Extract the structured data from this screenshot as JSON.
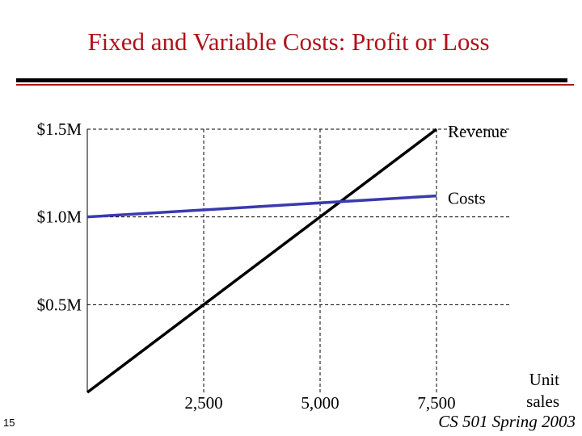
{
  "slide": {
    "title": "Fixed and Variable Costs: Profit or Loss",
    "number": "15",
    "footer": "CS 501 Spring 2003",
    "title_color": "#b0121b"
  },
  "chart_data": {
    "type": "line",
    "title": "",
    "xlabel": "Unit sales",
    "ylabel": "",
    "x_ticks": [
      {
        "value": 2500,
        "label": "2,500"
      },
      {
        "value": 5000,
        "label": "5,000"
      },
      {
        "value": 7500,
        "label": "7,500"
      }
    ],
    "y_ticks": [
      {
        "value": 0.5,
        "label": "$0.5M"
      },
      {
        "value": 1.0,
        "label": "$1.0M"
      },
      {
        "value": 1.5,
        "label": "$1.5M"
      }
    ],
    "xlim": [
      0,
      7500
    ],
    "ylim": [
      0,
      1.5
    ],
    "grid": true,
    "series": [
      {
        "name": "Revenue",
        "x": [
          0,
          7500
        ],
        "y": [
          0,
          1.5
        ],
        "color": "#000000"
      },
      {
        "name": "Costs",
        "x": [
          0,
          7500
        ],
        "y": [
          1.0,
          1.12
        ],
        "color": "#3a3ab0"
      }
    ]
  }
}
